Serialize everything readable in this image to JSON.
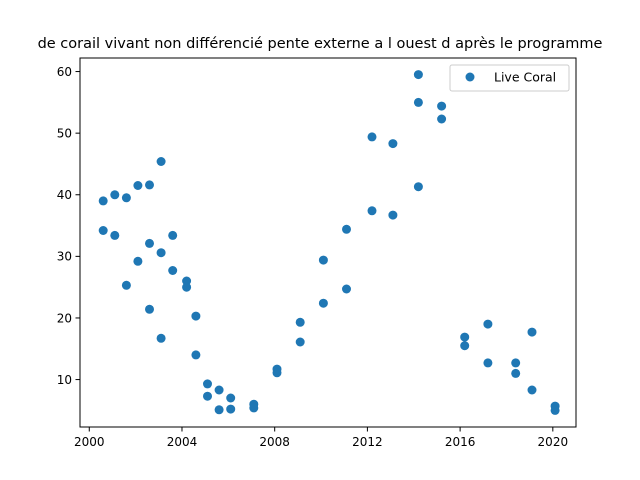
{
  "chart_data": {
    "type": "scatter",
    "title": "de corail vivant non différencié pente externe a l ouest d après le programme",
    "xlabel": "",
    "ylabel": "",
    "xlim": [
      1999.6,
      2021.0
    ],
    "ylim": [
      2.3,
      62.2
    ],
    "xticks": [
      2000,
      2004,
      2008,
      2012,
      2016,
      2020
    ],
    "yticks": [
      10,
      20,
      30,
      40,
      50,
      60
    ],
    "grid": false,
    "legend_position": "top-right",
    "series": [
      {
        "name": "Live Coral",
        "color": "#1f77b4",
        "points": [
          [
            2000.6,
            39.0
          ],
          [
            2000.6,
            34.2
          ],
          [
            2001.1,
            40.0
          ],
          [
            2001.1,
            33.4
          ],
          [
            2001.6,
            39.5
          ],
          [
            2001.6,
            25.3
          ],
          [
            2002.1,
            41.5
          ],
          [
            2002.1,
            29.2
          ],
          [
            2002.6,
            41.6
          ],
          [
            2002.6,
            32.1
          ],
          [
            2002.6,
            21.4
          ],
          [
            2003.1,
            45.4
          ],
          [
            2003.1,
            30.6
          ],
          [
            2003.1,
            16.7
          ],
          [
            2003.6,
            33.4
          ],
          [
            2003.6,
            27.7
          ],
          [
            2004.2,
            26.0
          ],
          [
            2004.2,
            25.0
          ],
          [
            2004.6,
            20.3
          ],
          [
            2004.6,
            14.0
          ],
          [
            2005.1,
            9.3
          ],
          [
            2005.1,
            7.3
          ],
          [
            2005.6,
            8.3
          ],
          [
            2005.6,
            5.1
          ],
          [
            2006.1,
            7.0
          ],
          [
            2006.1,
            5.2
          ],
          [
            2007.1,
            6.0
          ],
          [
            2007.1,
            5.4
          ],
          [
            2008.1,
            11.7
          ],
          [
            2008.1,
            11.1
          ],
          [
            2009.1,
            19.3
          ],
          [
            2009.1,
            16.1
          ],
          [
            2010.1,
            29.4
          ],
          [
            2010.1,
            22.4
          ],
          [
            2011.1,
            34.4
          ],
          [
            2011.1,
            24.7
          ],
          [
            2012.2,
            49.4
          ],
          [
            2012.2,
            37.4
          ],
          [
            2013.1,
            48.3
          ],
          [
            2013.1,
            36.7
          ],
          [
            2014.2,
            59.5
          ],
          [
            2014.2,
            55.0
          ],
          [
            2014.2,
            41.3
          ],
          [
            2015.2,
            54.4
          ],
          [
            2015.2,
            52.3
          ],
          [
            2016.2,
            16.9
          ],
          [
            2016.2,
            15.5
          ],
          [
            2017.2,
            19.0
          ],
          [
            2017.2,
            12.7
          ],
          [
            2018.4,
            12.7
          ],
          [
            2018.4,
            11.0
          ],
          [
            2019.1,
            17.7
          ],
          [
            2019.1,
            8.3
          ],
          [
            2020.1,
            5.7
          ],
          [
            2020.1,
            5.0
          ]
        ]
      }
    ]
  }
}
